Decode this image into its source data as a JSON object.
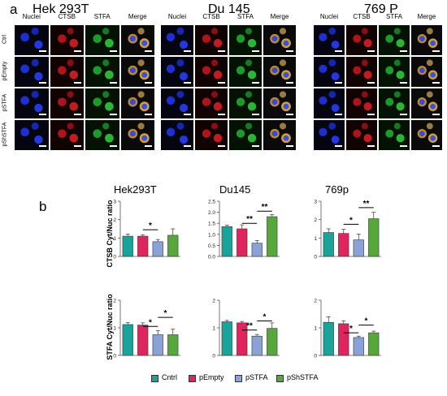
{
  "panel_a": {
    "letter": "a",
    "columns": [
      "Nuclei",
      "CTSB",
      "STFA",
      "Merge"
    ],
    "rows": [
      "Ctrl",
      "pEmpty",
      "pSTFA",
      "pShSTFA"
    ],
    "cell_lines": [
      "Hek 293T",
      "Du 145",
      "769 P"
    ]
  },
  "panel_b": {
    "letter": "b",
    "col_titles": [
      "Hek293T",
      "Du145",
      "769p"
    ],
    "row_ylabels": [
      "CTSB Cyt/Nuc ratio",
      "STFA Cyt/Nuc ratio"
    ],
    "legend": [
      "Cntrl",
      "pEmpty",
      "pSTFA",
      "pShSTFA"
    ],
    "colors": [
      "#1aa39a",
      "#e0245e",
      "#8aa2d8",
      "#56a83a"
    ]
  },
  "chart_data": [
    {
      "type": "bar",
      "id": "ctsb-hek",
      "categories": [
        "Cntrl",
        "pEmpty",
        "pSTFA",
        "pShSTFA"
      ],
      "values": [
        1.1,
        1.1,
        0.8,
        1.15
      ],
      "errors": [
        0.12,
        0.08,
        0.12,
        0.35
      ],
      "ylim": [
        0,
        3
      ],
      "yticks": [
        "0",
        "1",
        "2",
        "3"
      ],
      "sig": [
        {
          "x1": 2,
          "x2": 3,
          "y": 1.45,
          "label": "*"
        }
      ]
    },
    {
      "type": "bar",
      "id": "ctsb-du",
      "categories": [
        "Cntrl",
        "pEmpty",
        "pSTFA",
        "pShSTFA"
      ],
      "values": [
        1.35,
        1.25,
        0.6,
        1.8
      ],
      "errors": [
        0.07,
        0.18,
        0.12,
        0.1
      ],
      "ylim": [
        0,
        2.5
      ],
      "yticks": [
        "0.0",
        "0.5",
        "1.0",
        "1.5",
        "2.0",
        "2.5"
      ],
      "sig": [
        {
          "x1": 2,
          "x2": 3,
          "y": 1.5,
          "label": "**"
        },
        {
          "x1": 3,
          "x2": 4,
          "y": 2.05,
          "label": "**"
        }
      ]
    },
    {
      "type": "bar",
      "id": "ctsb-769",
      "categories": [
        "Cntrl",
        "pEmpty",
        "pSTFA",
        "pShSTFA"
      ],
      "values": [
        1.3,
        1.25,
        0.9,
        2.05
      ],
      "errors": [
        0.2,
        0.22,
        0.32,
        0.35
      ],
      "ylim": [
        0,
        3
      ],
      "yticks": [
        "0",
        "1",
        "2",
        "3"
      ],
      "sig": [
        {
          "x1": 2,
          "x2": 3,
          "y": 1.75,
          "label": "*"
        },
        {
          "x1": 3,
          "x2": 4,
          "y": 2.65,
          "label": "**"
        }
      ]
    },
    {
      "type": "bar",
      "id": "stfa-hek",
      "categories": [
        "Cntrl",
        "pEmpty",
        "pSTFA",
        "pShSTFA"
      ],
      "values": [
        1.12,
        1.1,
        0.75,
        0.75
      ],
      "errors": [
        0.07,
        0.08,
        0.15,
        0.2
      ],
      "ylim": [
        0,
        2
      ],
      "yticks": [
        "0",
        "1",
        "2"
      ],
      "sig": [
        {
          "x1": 2,
          "x2": 3,
          "y": 1.05,
          "label": "*"
        },
        {
          "x1": 3,
          "x2": 4,
          "y": 1.38,
          "label": "*"
        }
      ]
    },
    {
      "type": "bar",
      "id": "stfa-du",
      "categories": [
        "Cntrl",
        "pEmpty",
        "pSTFA",
        "pShSTFA"
      ],
      "values": [
        1.22,
        1.18,
        0.7,
        0.98
      ],
      "errors": [
        0.05,
        0.05,
        0.06,
        0.2
      ],
      "ylim": [
        0,
        2
      ],
      "yticks": [
        "0",
        "1",
        "2"
      ],
      "sig": [
        {
          "x1": 2,
          "x2": 3,
          "y": 0.92,
          "label": "**"
        },
        {
          "x1": 3,
          "x2": 4,
          "y": 1.25,
          "label": "*"
        }
      ]
    },
    {
      "type": "bar",
      "id": "stfa-769",
      "categories": [
        "Cntrl",
        "pEmpty",
        "pSTFA",
        "pShSTFA"
      ],
      "values": [
        1.2,
        1.15,
        0.65,
        0.82
      ],
      "errors": [
        0.2,
        0.1,
        0.05,
        0.06
      ],
      "ylim": [
        0,
        2
      ],
      "yticks": [
        "0",
        "1",
        "2"
      ],
      "sig": [
        {
          "x1": 2,
          "x2": 3,
          "y": 0.82,
          "label": "*"
        },
        {
          "x1": 3,
          "x2": 4,
          "y": 1.1,
          "label": "*"
        }
      ]
    }
  ]
}
